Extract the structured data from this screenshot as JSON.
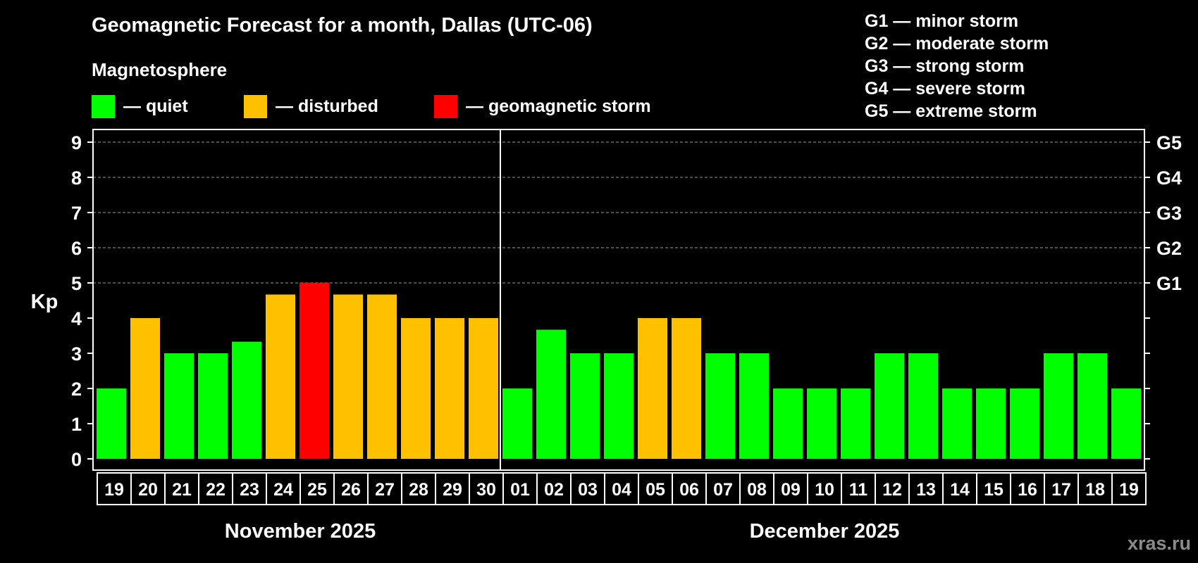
{
  "header": {
    "title": "Geomagnetic Forecast for a month, Dallas (UTC-06)",
    "subtitle": "Magnetosphere"
  },
  "legend": [
    {
      "label": "— quiet",
      "color": "#00ff00"
    },
    {
      "label": "— disturbed",
      "color": "#ffc000"
    },
    {
      "label": "— geomagnetic storm",
      "color": "#ff0000"
    }
  ],
  "storm_levels": [
    "G1 — minor storm",
    "G2 — moderate storm",
    "G3 — strong storm",
    "G4 — severe storm",
    "G5 — extreme storm"
  ],
  "watermark": "xras.ru",
  "chart_data": {
    "type": "bar",
    "title": "Geomagnetic Forecast for a month, Dallas (UTC-06)",
    "ylabel": "Kp",
    "ylim": [
      0,
      9
    ],
    "yticks": [
      "0",
      "1",
      "2",
      "3",
      "4",
      "5",
      "6",
      "7",
      "8",
      "9"
    ],
    "grid_from": 5,
    "right_ticks": [
      {
        "value": 5,
        "label": "G1"
      },
      {
        "value": 6,
        "label": "G2"
      },
      {
        "value": 7,
        "label": "G3"
      },
      {
        "value": 8,
        "label": "G4"
      },
      {
        "value": 9,
        "label": "G5"
      }
    ],
    "categories": [
      "19",
      "20",
      "21",
      "22",
      "23",
      "24",
      "25",
      "26",
      "27",
      "28",
      "29",
      "30",
      "01",
      "02",
      "03",
      "04",
      "05",
      "06",
      "07",
      "08",
      "09",
      "10",
      "11",
      "12",
      "13",
      "14",
      "15",
      "16",
      "17",
      "18",
      "19"
    ],
    "values": [
      2,
      4,
      3,
      3,
      3.33,
      4.67,
      5,
      4.67,
      4.67,
      4,
      4,
      4,
      2,
      3.67,
      3,
      3,
      4,
      4,
      3,
      3,
      2,
      2,
      2,
      3,
      3,
      2,
      2,
      2,
      3,
      3,
      2
    ],
    "status": [
      "quiet",
      "disturbed",
      "quiet",
      "quiet",
      "quiet",
      "disturbed",
      "storm",
      "disturbed",
      "disturbed",
      "disturbed",
      "disturbed",
      "disturbed",
      "quiet",
      "quiet",
      "quiet",
      "quiet",
      "disturbed",
      "disturbed",
      "quiet",
      "quiet",
      "quiet",
      "quiet",
      "quiet",
      "quiet",
      "quiet",
      "quiet",
      "quiet",
      "quiet",
      "quiet",
      "quiet",
      "quiet"
    ],
    "status_colors": {
      "quiet": "#00ff00",
      "disturbed": "#ffc000",
      "storm": "#ff0000"
    },
    "month_groups": [
      {
        "label": "November 2025",
        "count": 12
      },
      {
        "label": "December 2025",
        "count": 19
      }
    ]
  }
}
